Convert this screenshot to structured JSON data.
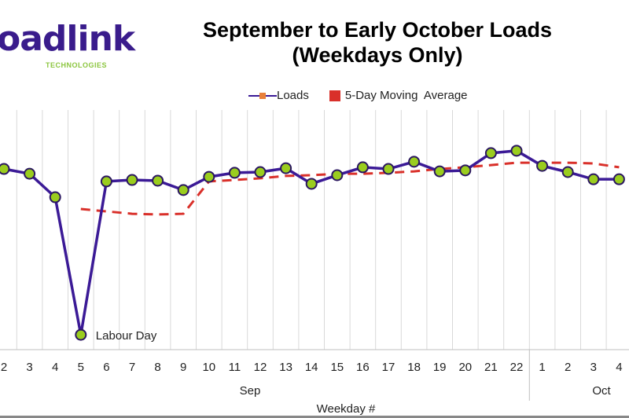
{
  "logo": {
    "text": "oadlink",
    "subtext": "TECHNOLOGIES"
  },
  "chart_data": {
    "type": "line",
    "title": "September to Early October Loads\n(Weekdays Only)",
    "title_lines": [
      "September to Early October Loads",
      "(Weekdays Only)"
    ],
    "xlabel": "Weekday #",
    "ylabel": "",
    "categories": [
      "2",
      "3",
      "4",
      "5",
      "6",
      "7",
      "8",
      "9",
      "10",
      "11",
      "12",
      "13",
      "14",
      "15",
      "16",
      "17",
      "18",
      "19",
      "20",
      "21",
      "22",
      "1",
      "2",
      "3",
      "4"
    ],
    "groups": [
      {
        "label": "Sep",
        "count": 21
      },
      {
        "label": "Oct",
        "count": 4
      }
    ],
    "ylim": [
      0,
      100
    ],
    "grid": {
      "vertical": true,
      "horizontal": false
    },
    "legend_position": "top",
    "series": [
      {
        "name": "Loads",
        "color": "#3b1a96",
        "marker_color": "#9acd1e",
        "values": [
          75.4,
          73.4,
          63.6,
          6.2,
          70.2,
          70.8,
          70.5,
          66.6,
          72.1,
          73.8,
          74.1,
          75.7,
          69.2,
          72.8,
          76.1,
          75.4,
          78.4,
          74.4,
          74.8,
          82.0,
          83.0,
          76.7,
          74.1,
          71.1,
          71.1
        ]
      },
      {
        "name": "5-Day Moving  Average",
        "color": "#d9302a",
        "style": "dashed",
        "values": [
          null,
          null,
          null,
          58.7,
          57.7,
          56.7,
          56.4,
          56.7,
          70.2,
          70.8,
          71.5,
          72.5,
          72.8,
          73.4,
          73.4,
          73.8,
          74.4,
          75.4,
          76.1,
          77.0,
          78.0,
          78.0,
          78.0,
          77.7,
          76.1
        ]
      }
    ],
    "annotations": [
      {
        "category_index": 3,
        "text": "Labour Day"
      }
    ]
  }
}
